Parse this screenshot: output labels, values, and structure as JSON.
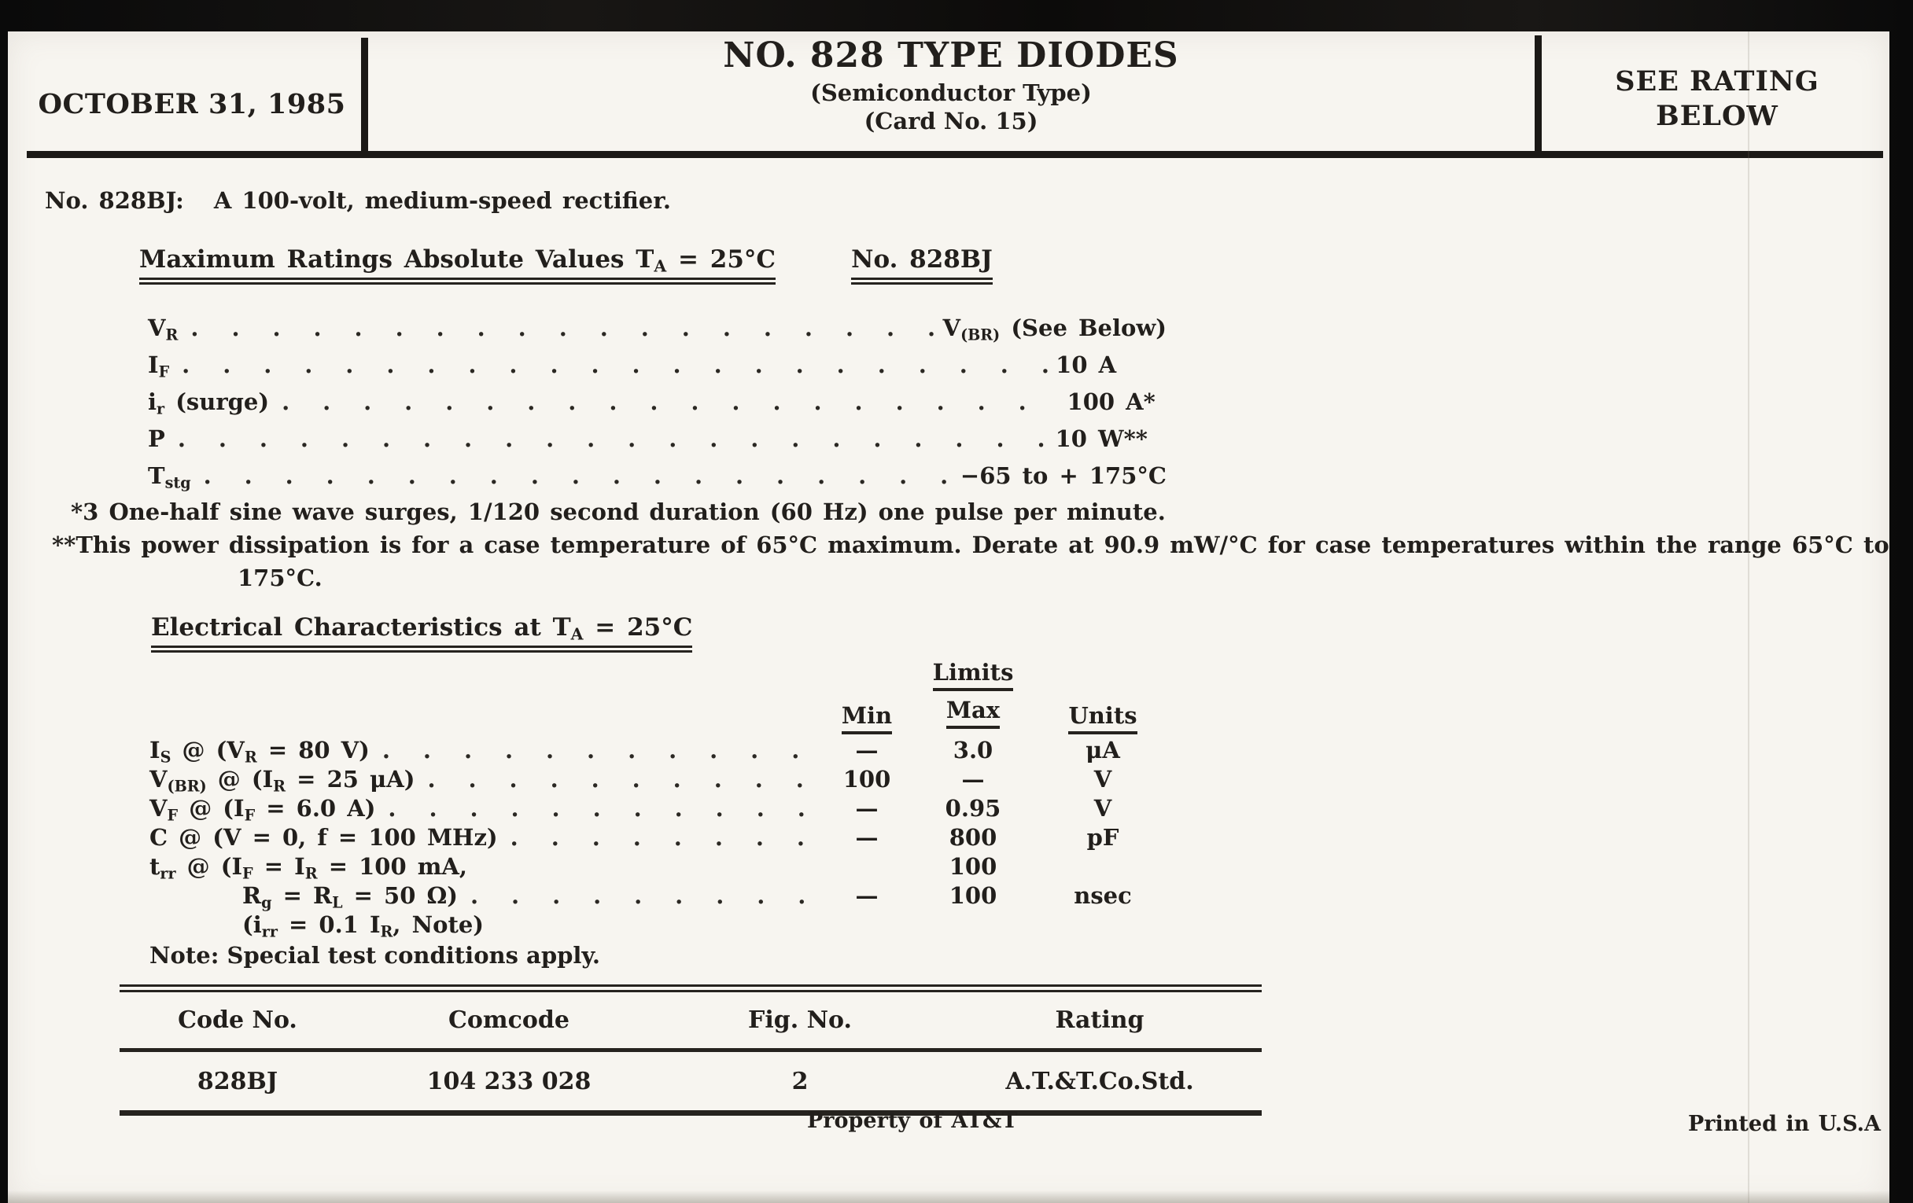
{
  "header": {
    "date": "OCTOBER 31, 1985",
    "title": "NO. 828 TYPE DIODES",
    "subtitle": "(Semiconductor Type)",
    "card_no": "(Card No. 15)",
    "rating_note_line1": "SEE RATING",
    "rating_note_line2": "BELOW"
  },
  "intro": {
    "code": "No. 828BJ:",
    "description": "A 100-volt, medium-speed rectifier."
  },
  "max_ratings": {
    "heading": [
      [
        "t",
        "Maximum Ratings Absolute Values T"
      ],
      [
        "s",
        "A"
      ],
      [
        "t",
        " = 25°C"
      ]
    ],
    "column_header": "No. 828BJ",
    "rows": [
      {
        "label": [
          [
            "t",
            "V"
          ],
          [
            "s",
            "R"
          ]
        ],
        "value": [
          [
            "t",
            "V"
          ],
          [
            "s",
            "(BR)"
          ],
          [
            "t",
            " (See Below)"
          ]
        ]
      },
      {
        "label": [
          [
            "t",
            "I"
          ],
          [
            "s",
            "F"
          ]
        ],
        "value": [
          [
            "t",
            "10 A"
          ]
        ]
      },
      {
        "label": [
          [
            "t",
            "i"
          ],
          [
            "s",
            "r"
          ],
          [
            "t",
            " (surge)"
          ]
        ],
        "value": [
          [
            "t",
            "100 A*"
          ]
        ]
      },
      {
        "label": [
          [
            "t",
            "P"
          ]
        ],
        "value": [
          [
            "t",
            "10 W**"
          ]
        ]
      },
      {
        "label": [
          [
            "t",
            "T"
          ],
          [
            "s",
            "stg"
          ]
        ],
        "value": [
          [
            "t",
            "−65 to + 175°C"
          ]
        ]
      }
    ],
    "footnote1": "*3 One-half sine wave surges, 1/120 second duration (60 Hz) one pulse per minute.",
    "footnote2": "**This power dissipation is for a case temperature of 65°C maximum. Derate at 90.9 mW/°C for case temperatures within the range 65°C to",
    "footnote2_cont": "175°C."
  },
  "electrical": {
    "heading": [
      [
        "t",
        "Electrical Characteristics at T"
      ],
      [
        "s",
        "A"
      ],
      [
        "t",
        " = 25°C"
      ]
    ],
    "limits_label": "Limits",
    "min_label": "Min",
    "max_label": "Max",
    "units_label": "Units",
    "rows": [
      {
        "label": [
          [
            "t",
            "I"
          ],
          [
            "s",
            "S"
          ],
          [
            "t",
            " @ (V"
          ],
          [
            "s",
            "R"
          ],
          [
            "t",
            " = 80 V)"
          ]
        ],
        "min": "—",
        "max": "3.0",
        "units": "μA"
      },
      {
        "label": [
          [
            "t",
            "V"
          ],
          [
            "s",
            "(BR)"
          ],
          [
            "t",
            " @ (I"
          ],
          [
            "s",
            "R"
          ],
          [
            "t",
            " = 25 μA)"
          ]
        ],
        "min": "100",
        "max": "—",
        "units": "V"
      },
      {
        "label": [
          [
            "t",
            "V"
          ],
          [
            "s",
            "F"
          ],
          [
            "t",
            " @ (I"
          ],
          [
            "s",
            "F"
          ],
          [
            "t",
            " = 6.0 A)"
          ]
        ],
        "min": "—",
        "max": "0.95",
        "units": "V"
      },
      {
        "label": [
          [
            "t",
            "C @ (V = 0, f = 100 MHz)"
          ]
        ],
        "min": "—",
        "max": "800",
        "units": "pF"
      },
      {
        "label": [
          [
            "t",
            "t"
          ],
          [
            "s",
            "rr"
          ],
          [
            "t",
            " @ (I"
          ],
          [
            "s",
            "F"
          ],
          [
            "t",
            " = I"
          ],
          [
            "s",
            "R"
          ],
          [
            "t",
            " = 100 mA,"
          ]
        ],
        "min": "",
        "max": "100",
        "units": ""
      },
      {
        "label": [
          [
            "t",
            "R"
          ],
          [
            "s",
            "g"
          ],
          [
            "t",
            " = R"
          ],
          [
            "s",
            "L"
          ],
          [
            "t",
            " = 50 Ω)"
          ]
        ],
        "min": "—",
        "max": "100",
        "units": "nsec"
      },
      {
        "label": [
          [
            "t",
            "(i"
          ],
          [
            "s",
            "rr"
          ],
          [
            "t",
            " = 0.1 I"
          ],
          [
            "s",
            "R"
          ],
          [
            "t",
            ", Note)"
          ]
        ],
        "min": "",
        "max": "",
        "units": ""
      }
    ],
    "note": "Note: Special test conditions apply."
  },
  "code_table": {
    "headers": [
      "Code No.",
      "Comcode",
      "Fig. No.",
      "Rating"
    ],
    "row": [
      "828BJ",
      "104 233 028",
      "2",
      "A.T.&T.Co.Std."
    ]
  },
  "footer": {
    "property": "Property of AT&T",
    "printed": "Printed in U.S.A"
  }
}
